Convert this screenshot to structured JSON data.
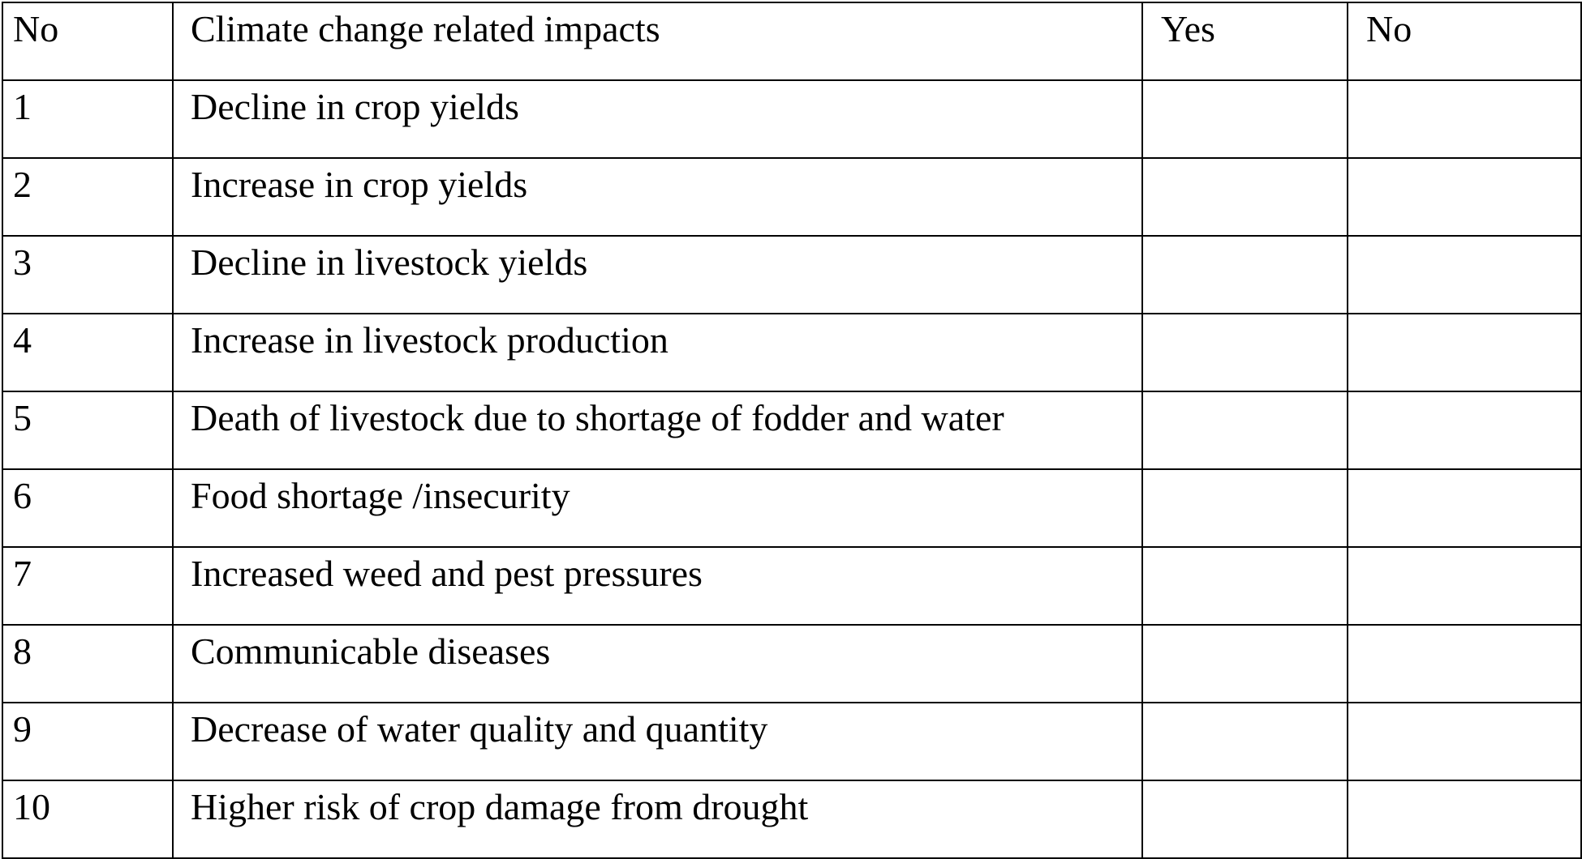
{
  "table": {
    "headers": {
      "no": "No",
      "impact": "Climate change related impacts",
      "yes": "Yes",
      "no_answer": "No"
    },
    "rows": [
      {
        "no": "1",
        "impact": "Decline in crop yields",
        "yes": "",
        "no_answer": ""
      },
      {
        "no": "2",
        "impact": "Increase in crop yields",
        "yes": "",
        "no_answer": ""
      },
      {
        "no": "3",
        "impact": "Decline in livestock yields",
        "yes": "",
        "no_answer": ""
      },
      {
        "no": "4",
        "impact": "Increase in livestock production",
        "yes": "",
        "no_answer": ""
      },
      {
        "no": "5",
        "impact": "Death of livestock due to shortage of fodder and water",
        "yes": "",
        "no_answer": ""
      },
      {
        "no": "6",
        "impact": "Food shortage /insecurity",
        "yes": "",
        "no_answer": ""
      },
      {
        "no": "7",
        "impact": "Increased weed and pest pressures",
        "yes": "",
        "no_answer": ""
      },
      {
        "no": "8",
        "impact": "Communicable diseases",
        "yes": "",
        "no_answer": ""
      },
      {
        "no": "9",
        "impact": "Decrease of water quality and quantity",
        "yes": "",
        "no_answer": ""
      },
      {
        "no": "10",
        "impact": "Higher risk of crop damage from drought",
        "yes": "",
        "no_answer": ""
      }
    ]
  }
}
